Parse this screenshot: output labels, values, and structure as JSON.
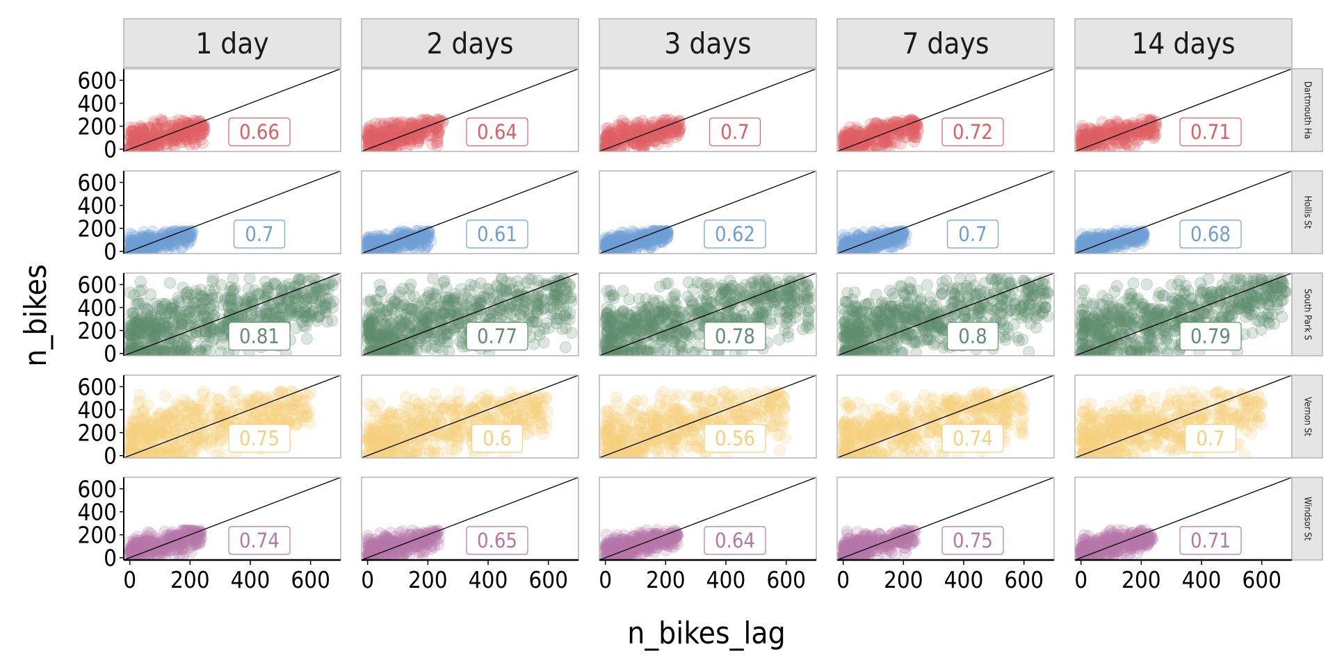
{
  "chart_data": {
    "type": "scatter",
    "facet_layout": "grid",
    "xlabel": "n_bikes_lag",
    "ylabel": "n_bikes",
    "xlim": [
      -20,
      700
    ],
    "ylim": [
      -20,
      700
    ],
    "x_ticks": [
      0,
      200,
      400,
      600
    ],
    "y_ticks": [
      0,
      200,
      400,
      600
    ],
    "grid": false,
    "reference_line": "y = x",
    "column_strips": [
      "1 day",
      "2 days",
      "3 days",
      "7 days",
      "14 days"
    ],
    "row_strips": [
      "Dartmouth Ha",
      "Hollis St",
      "South Park S",
      "Vernon St",
      "Windsor St"
    ],
    "series": [
      {
        "colour": "#dd5f63",
        "correlations": [
          "0.66",
          "0.64",
          "0.7",
          "0.72",
          "0.71"
        ],
        "point_cloud": {
          "x_range": [
            0,
            250
          ],
          "y_range": [
            0,
            260
          ],
          "count": 260
        }
      },
      {
        "colour": "#6f9fd4",
        "correlations": [
          "0.7",
          "0.61",
          "0.62",
          "0.7",
          "0.68"
        ],
        "point_cloud": {
          "x_range": [
            0,
            210
          ],
          "y_range": [
            0,
            180
          ],
          "count": 280
        }
      },
      {
        "colour": "#5f8f6f",
        "correlations": [
          "0.81",
          "0.77",
          "0.78",
          "0.8",
          "0.79"
        ],
        "point_cloud": {
          "x_range": [
            0,
            680
          ],
          "y_range": [
            0,
            660
          ],
          "count": 650
        }
      },
      {
        "colour": "#f5d07e",
        "correlations": [
          "0.75",
          "0.6",
          "0.56",
          "0.74",
          "0.7"
        ],
        "point_cloud": {
          "x_range": [
            0,
            600
          ],
          "y_range": [
            0,
            560
          ],
          "count": 520
        }
      },
      {
        "colour": "#b677a8",
        "correlations": [
          "0.74",
          "0.65",
          "0.64",
          "0.75",
          "0.71"
        ],
        "point_cloud": {
          "x_range": [
            0,
            240
          ],
          "y_range": [
            0,
            240
          ],
          "count": 280
        }
      }
    ]
  }
}
